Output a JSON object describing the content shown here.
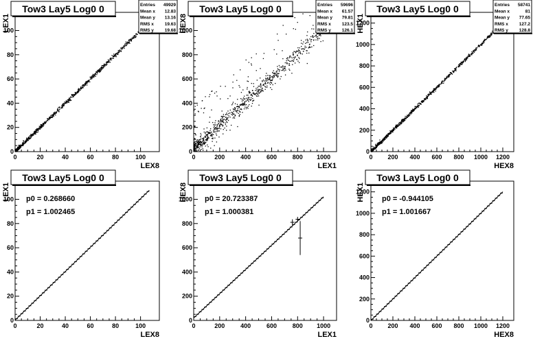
{
  "chart_data": [
    {
      "type": "scatter",
      "title": "Tow3 Lay5 Log0 0",
      "xlabel": "LEX8",
      "ylabel": "LEX1",
      "xlim": [
        0,
        115
      ],
      "ylim": [
        0,
        115
      ],
      "xticks": [
        0,
        20,
        40,
        60,
        80,
        100
      ],
      "yticks": [
        0,
        20,
        40,
        60,
        80,
        100
      ],
      "stats": [
        [
          "Entries",
          "49929"
        ],
        [
          "Mean x",
          "12.83"
        ],
        [
          "Mean y",
          "13.16"
        ],
        [
          "RMS x",
          "19.63"
        ],
        [
          "RMS y",
          "19.68"
        ]
      ],
      "line": {
        "x": [
          0,
          100
        ],
        "y": [
          0,
          100
        ]
      },
      "scatter_spread": 0.8
    },
    {
      "type": "scatter",
      "title": "Tow3 Lay5 Log0 0",
      "xlabel": "LEX1",
      "ylabel": "HEX8",
      "xlim": [
        0,
        1100
      ],
      "ylim": [
        0,
        1150
      ],
      "xticks": [
        0,
        200,
        400,
        600,
        800,
        1000
      ],
      "yticks": [
        0,
        200,
        400,
        600,
        800,
        1000
      ],
      "stats": [
        [
          "Entries",
          "59696"
        ],
        [
          "Mean x",
          "61.57"
        ],
        [
          "Mean y",
          "79.81"
        ],
        [
          "RMS x",
          "123.5"
        ],
        [
          "RMS y",
          "126.1"
        ]
      ],
      "line": {
        "x": [
          0,
          1000
        ],
        "y": [
          20,
          1000
        ]
      },
      "scatter_spread": 30
    },
    {
      "type": "scatter",
      "title": "Tow3 Lay5 Log0 0",
      "xlabel": "HEX8",
      "ylabel": "HEX1",
      "xlim": [
        0,
        1300
      ],
      "ylim": [
        0,
        1300
      ],
      "xticks": [
        0,
        200,
        400,
        600,
        800,
        1000,
        1200
      ],
      "yticks": [
        0,
        200,
        400,
        600,
        800,
        1000,
        1200
      ],
      "stats": [
        [
          "Entries",
          "58741"
        ],
        [
          "Mean x",
          "81"
        ],
        [
          "Mean y",
          "77.65"
        ],
        [
          "RMS x",
          "127.2"
        ],
        [
          "RMS y",
          "128.8"
        ]
      ],
      "line": {
        "x": [
          0,
          1200
        ],
        "y": [
          0,
          1200
        ]
      },
      "scatter_spread": 8
    },
    {
      "type": "line",
      "title": "Tow3 Lay5 Log0 0",
      "xlabel": "LEX8",
      "ylabel": "LEX1",
      "xlim": [
        0,
        115
      ],
      "ylim": [
        0,
        115
      ],
      "xticks": [
        0,
        20,
        40,
        60,
        80,
        100
      ],
      "yticks": [
        0,
        20,
        40,
        60,
        80,
        100
      ],
      "fit": [
        "p0 = 0.268660",
        "p1 = 1.002465"
      ],
      "fit_params": {
        "p0": 0.26866,
        "p1": 1.002465
      },
      "line": {
        "x": [
          0,
          107
        ],
        "y": [
          0.27,
          107.5
        ]
      }
    },
    {
      "type": "line",
      "title": "Tow3 Lay5 Log0 0",
      "xlabel": "LEX1",
      "ylabel": "HEX8",
      "xlim": [
        0,
        1100
      ],
      "ylim": [
        0,
        1150
      ],
      "xticks": [
        0,
        200,
        400,
        600,
        800,
        1000
      ],
      "yticks": [
        0,
        200,
        400,
        600,
        800,
        1000
      ],
      "fit": [
        "p0 = 20.723387",
        "p1 = 1.000381"
      ],
      "fit_params": {
        "p0": 20.723387,
        "p1": 1.000381
      },
      "line": {
        "x": [
          0,
          1000
        ],
        "y": [
          20.7,
          1021
        ]
      },
      "outliers": [
        {
          "x": 820,
          "y": 680,
          "err": 140
        },
        {
          "x": 760,
          "y": 810,
          "err": 25
        },
        {
          "x": 800,
          "y": 835,
          "err": 20
        }
      ]
    },
    {
      "type": "line",
      "title": "Tow3 Lay5 Log0 0",
      "xlabel": "HEX8",
      "ylabel": "HEX1",
      "xlim": [
        0,
        1300
      ],
      "ylim": [
        0,
        1300
      ],
      "xticks": [
        0,
        200,
        400,
        600,
        800,
        1000,
        1200
      ],
      "yticks": [
        0,
        200,
        400,
        600,
        800,
        1000,
        1200
      ],
      "fit": [
        "p0 = -0.944105",
        "p1 = 1.001667"
      ],
      "fit_params": {
        "p0": -0.944105,
        "p1": 1.001667
      },
      "line": {
        "x": [
          0,
          1200
        ],
        "y": [
          -0.9,
          1201
        ]
      }
    }
  ]
}
